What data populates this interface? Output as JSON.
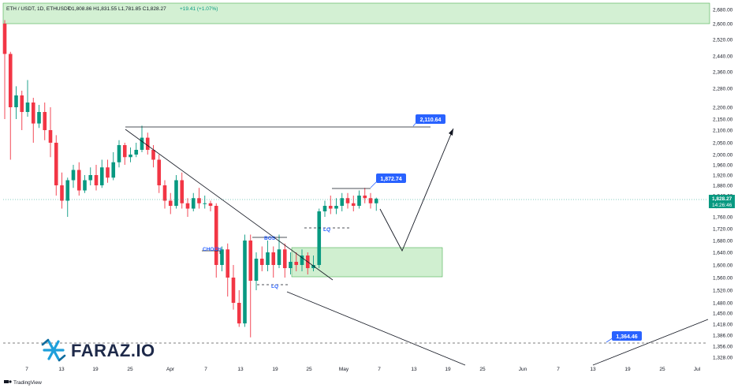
{
  "header": {
    "symbol": "ETH / USDT, 1D, ETHUSDT",
    "ohlc": "O1,808.86 H1,831.55 L1,781.85 C1,828.27",
    "change": "+19.41 (+1.07%)"
  },
  "current_price": {
    "value": "1,828.27",
    "countdown": "14:26:46",
    "color": "#089981"
  },
  "callouts": {
    "target": "2,110.64",
    "swing_high": "1,872.74",
    "low": "1,364.46"
  },
  "annotations": {
    "choch": "CHOCH",
    "bos": "BOS",
    "lq_upper": "LQ",
    "lq_lower": "LQ"
  },
  "branding": {
    "logo": "FARAZ.IO",
    "footer": "TradingView"
  },
  "colors": {
    "up": "#089981",
    "down": "#f23645",
    "accent": "#2962ff",
    "zone": "#c8ecc8",
    "zone_border": "#4caf50"
  },
  "chart_data": {
    "type": "candlestick",
    "title": "",
    "xlabel": "",
    "ylabel": "",
    "ylim": [
      1300,
      2700
    ],
    "y_ticks": [
      "2,680.00",
      "2,600.00",
      "2,520.00",
      "2,440.00",
      "2,360.00",
      "2,280.00",
      "2,200.00",
      "2,150.00",
      "2,100.00",
      "2,050.00",
      "2,000.00",
      "1,960.00",
      "1,920.00",
      "1,880.00",
      "1,840.00",
      "1,800.00",
      "1,760.00",
      "1,720.00",
      "1,680.00",
      "1,640.00",
      "1,600.00",
      "1,560.00",
      "1,520.00",
      "1,480.00",
      "1,450.00",
      "1,418.00",
      "1,386.00",
      "1,356.00",
      "1,328.00"
    ],
    "x_ticks": [
      "7",
      "13",
      "19",
      "25",
      "Apr",
      "7",
      "13",
      "19",
      "25",
      "May",
      "7",
      "13",
      "19",
      "25",
      "Jun",
      "7",
      "13",
      "19",
      "25",
      "Jul"
    ],
    "candles": [
      [
        2600,
        2450,
        2620,
        2150
      ],
      [
        2450,
        2200,
        2460,
        1980
      ],
      [
        2200,
        2250,
        2290,
        2150
      ],
      [
        2250,
        2180,
        2270,
        2100
      ],
      [
        2180,
        2220,
        2320,
        2160
      ],
      [
        2220,
        2130,
        2240,
        2050
      ],
      [
        2130,
        2180,
        2210,
        2110
      ],
      [
        2180,
        2100,
        2220,
        2060
      ],
      [
        2100,
        2050,
        2200,
        1990
      ],
      [
        2050,
        1880,
        2080,
        1840
      ],
      [
        1880,
        1820,
        1930,
        1790
      ],
      [
        1820,
        1900,
        1910,
        1760
      ],
      [
        1900,
        1940,
        1960,
        1870
      ],
      [
        1940,
        1860,
        1970,
        1840
      ],
      [
        1860,
        1900,
        1920,
        1850
      ],
      [
        1900,
        1920,
        1950,
        1880
      ],
      [
        1920,
        1880,
        1960,
        1860
      ],
      [
        1880,
        1950,
        1980,
        1870
      ],
      [
        1950,
        1910,
        1980,
        1890
      ],
      [
        1910,
        1970,
        2010,
        1900
      ],
      [
        1970,
        2040,
        2060,
        1950
      ],
      [
        2040,
        1990,
        2050,
        1960
      ],
      [
        1990,
        2000,
        2030,
        1970
      ],
      [
        2000,
        2020,
        2050,
        1990
      ],
      [
        2020,
        2070,
        2120,
        2010
      ],
      [
        2070,
        2020,
        2090,
        2000
      ],
      [
        2020,
        1980,
        2040,
        1950
      ],
      [
        1980,
        1880,
        2000,
        1850
      ],
      [
        1880,
        1820,
        1900,
        1790
      ],
      [
        1820,
        1800,
        1850,
        1770
      ],
      [
        1800,
        1900,
        1920,
        1790
      ],
      [
        1900,
        1810,
        1930,
        1790
      ],
      [
        1810,
        1790,
        1830,
        1760
      ],
      [
        1790,
        1830,
        1850,
        1780
      ],
      [
        1830,
        1810,
        1870,
        1790
      ],
      [
        1810,
        1810,
        1840,
        1790
      ],
      [
        1810,
        1800,
        1820,
        1780
      ],
      [
        1800,
        1600,
        1810,
        1560
      ],
      [
        1600,
        1650,
        1660,
        1580
      ],
      [
        1650,
        1560,
        1670,
        1500
      ],
      [
        1560,
        1480,
        1600,
        1460
      ],
      [
        1480,
        1420,
        1520,
        1410
      ],
      [
        1420,
        1680,
        1700,
        1410
      ],
      [
        1680,
        1550,
        1700,
        1380
      ],
      [
        1550,
        1620,
        1640,
        1520
      ],
      [
        1620,
        1600,
        1660,
        1580
      ],
      [
        1600,
        1640,
        1680,
        1580
      ],
      [
        1640,
        1600,
        1660,
        1560
      ],
      [
        1600,
        1650,
        1700,
        1590
      ],
      [
        1650,
        1590,
        1670,
        1560
      ],
      [
        1590,
        1610,
        1640,
        1570
      ],
      [
        1610,
        1600,
        1640,
        1580
      ],
      [
        1600,
        1630,
        1650,
        1580
      ],
      [
        1630,
        1590,
        1640,
        1570
      ],
      [
        1590,
        1600,
        1630,
        1580
      ],
      [
        1600,
        1780,
        1790,
        1590
      ],
      [
        1780,
        1800,
        1820,
        1760
      ],
      [
        1800,
        1790,
        1840,
        1770
      ],
      [
        1790,
        1800,
        1830,
        1770
      ],
      [
        1800,
        1830,
        1850,
        1780
      ],
      [
        1830,
        1810,
        1850,
        1790
      ],
      [
        1810,
        1800,
        1840,
        1780
      ],
      [
        1800,
        1840,
        1860,
        1790
      ],
      [
        1840,
        1830,
        1870,
        1810
      ],
      [
        1830,
        1810,
        1850,
        1790
      ],
      [
        1810,
        1828,
        1832,
        1782
      ]
    ],
    "horizontal_levels": [
      {
        "value": 2110.64,
        "label": "2,110.64"
      },
      {
        "value": 1364.46,
        "label": "1,364.46",
        "style": "dashed"
      }
    ],
    "zones": [
      {
        "from": 1560,
        "to": 1680,
        "label": "demand"
      },
      {
        "from": 2600,
        "to": 2700,
        "label": "supply"
      }
    ]
  }
}
